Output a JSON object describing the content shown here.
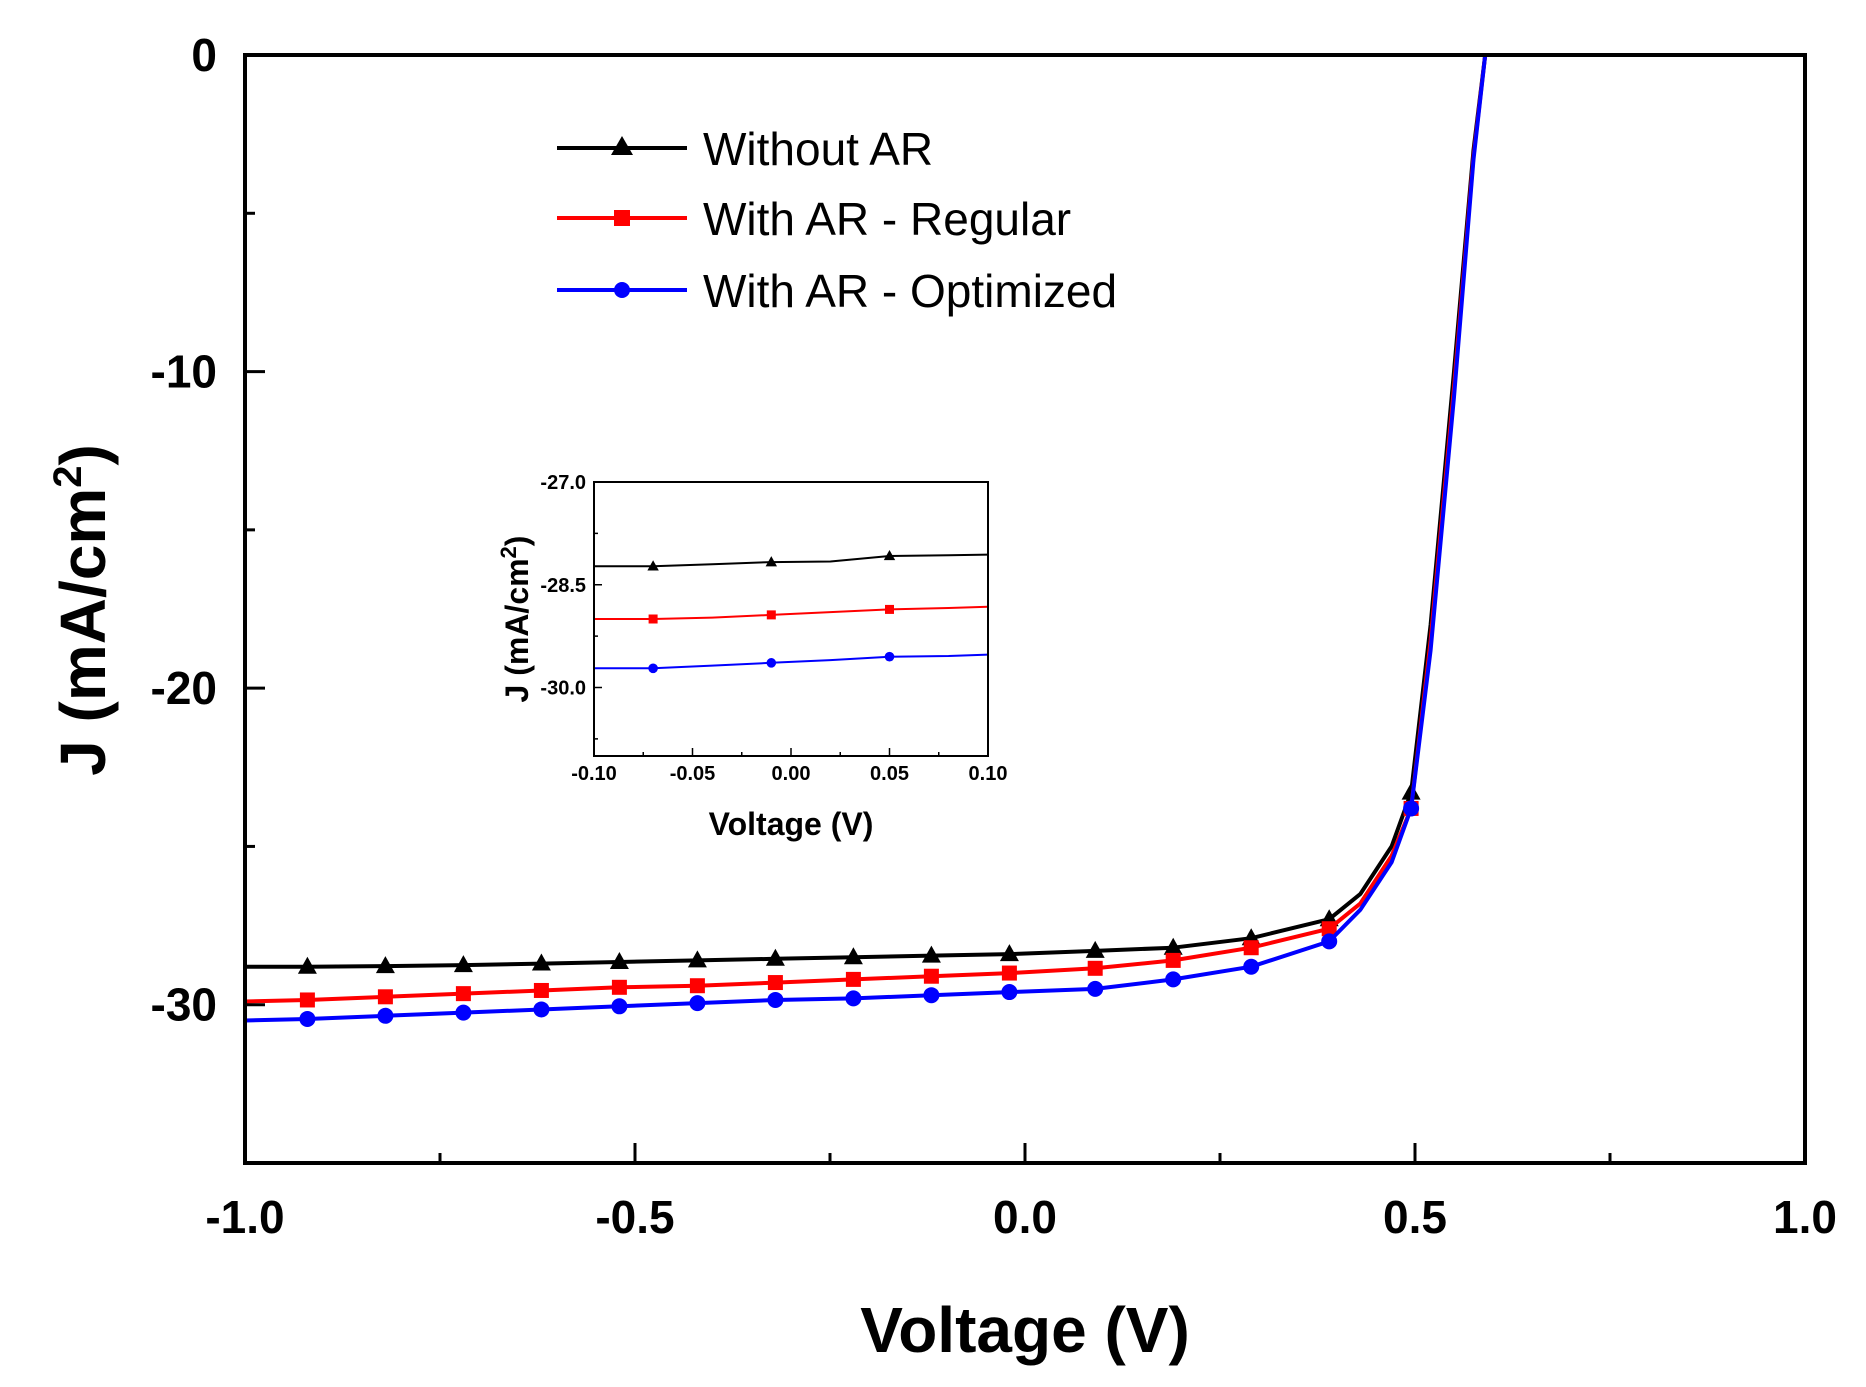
{
  "chart_data": [
    {
      "id": "main",
      "type": "line",
      "title": "",
      "xlabel": "Voltage (V)",
      "ylabel_prefix": "J (mA/cm",
      "ylabel_sup": "2",
      "ylabel_suffix": ")",
      "xlim": [
        -1.0,
        1.0
      ],
      "ylim": [
        -35,
        0
      ],
      "x_ticks": [
        -1.0,
        -0.5,
        0.0,
        0.5,
        1.0
      ],
      "x_tick_labels": [
        "-1.0",
        "-0.5",
        "0.0",
        "0.5",
        "1.0"
      ],
      "y_ticks": [
        0,
        -10,
        -20,
        -30
      ],
      "y_tick_labels": [
        "0",
        "-10",
        "-20",
        "-30"
      ],
      "grid": false,
      "legend_position": "top-left",
      "series": [
        {
          "name": "Without AR",
          "color": "#000000",
          "marker": "triangle",
          "x": [
            -1.0,
            -0.92,
            -0.82,
            -0.72,
            -0.62,
            -0.52,
            -0.42,
            -0.32,
            -0.22,
            -0.12,
            -0.02,
            0.09,
            0.19,
            0.29,
            0.39,
            0.43,
            0.47,
            0.495,
            0.52,
            0.55,
            0.575,
            0.59
          ],
          "y": [
            -28.8,
            -28.8,
            -28.78,
            -28.75,
            -28.7,
            -28.65,
            -28.6,
            -28.55,
            -28.5,
            -28.45,
            -28.4,
            -28.3,
            -28.2,
            -27.9,
            -27.3,
            -26.5,
            -25.0,
            -23.3,
            -18.0,
            -10.0,
            -3.0,
            0.0
          ]
        },
        {
          "name": "With AR - Regular",
          "color": "#ff0000",
          "marker": "square",
          "x": [
            -1.0,
            -0.92,
            -0.82,
            -0.72,
            -0.62,
            -0.52,
            -0.42,
            -0.32,
            -0.22,
            -0.12,
            -0.02,
            0.09,
            0.19,
            0.29,
            0.39,
            0.43,
            0.47,
            0.495,
            0.52,
            0.55,
            0.575,
            0.59
          ],
          "y": [
            -29.9,
            -29.85,
            -29.75,
            -29.65,
            -29.55,
            -29.45,
            -29.4,
            -29.3,
            -29.2,
            -29.1,
            -29.0,
            -28.85,
            -28.6,
            -28.2,
            -27.6,
            -26.8,
            -25.3,
            -23.8,
            -18.5,
            -10.5,
            -3.2,
            0.0
          ]
        },
        {
          "name": "With AR - Optimized",
          "color": "#0000ff",
          "marker": "circle",
          "x": [
            -1.0,
            -0.92,
            -0.82,
            -0.72,
            -0.62,
            -0.52,
            -0.42,
            -0.32,
            -0.22,
            -0.12,
            -0.02,
            0.09,
            0.19,
            0.29,
            0.39,
            0.43,
            0.47,
            0.495,
            0.52,
            0.55,
            0.575,
            0.59
          ],
          "y": [
            -30.5,
            -30.45,
            -30.35,
            -30.25,
            -30.15,
            -30.05,
            -29.95,
            -29.85,
            -29.8,
            -29.7,
            -29.6,
            -29.5,
            -29.2,
            -28.8,
            -28.0,
            -27.0,
            -25.5,
            -23.8,
            -18.8,
            -10.8,
            -3.3,
            0.0
          ]
        }
      ],
      "marker_x": [
        -0.92,
        -0.82,
        -0.72,
        -0.62,
        -0.52,
        -0.42,
        -0.32,
        -0.22,
        -0.12,
        -0.02,
        0.09,
        0.19,
        0.29,
        0.39,
        0.495
      ]
    },
    {
      "id": "inset",
      "type": "line",
      "title": "",
      "xlabel": "Voltage (V)",
      "ylabel_prefix": "J (mA/cm",
      "ylabel_sup": "2",
      "ylabel_suffix": ")",
      "xlim": [
        -0.1,
        0.1
      ],
      "ylim": [
        -31.0,
        -27.0
      ],
      "x_ticks": [
        -0.1,
        -0.05,
        0.0,
        0.05,
        0.1
      ],
      "x_tick_labels": [
        "-0.10",
        "-0.05",
        "0.00",
        "0.05",
        "0.10"
      ],
      "y_ticks": [
        -27.0,
        -28.5,
        -30.0
      ],
      "y_tick_labels": [
        "-27.0",
        "-28.5",
        "-30.0"
      ],
      "grid": false,
      "series": [
        {
          "name": "Without AR",
          "color": "#000000",
          "marker": "triangle",
          "x": [
            -0.1,
            -0.07,
            -0.04,
            -0.01,
            0.02,
            0.05,
            0.08,
            0.1
          ],
          "y": [
            -28.23,
            -28.23,
            -28.2,
            -28.17,
            -28.16,
            -28.08,
            -28.07,
            -28.06
          ]
        },
        {
          "name": "With AR - Regular",
          "color": "#ff0000",
          "marker": "square",
          "x": [
            -0.1,
            -0.07,
            -0.04,
            -0.01,
            0.02,
            0.05,
            0.08,
            0.1
          ],
          "y": [
            -29.0,
            -29.0,
            -28.98,
            -28.94,
            -28.9,
            -28.86,
            -28.84,
            -28.82
          ]
        },
        {
          "name": "With AR - Optimized",
          "color": "#0000ff",
          "marker": "circle",
          "x": [
            -0.1,
            -0.07,
            -0.04,
            -0.01,
            0.02,
            0.05,
            0.08,
            0.1
          ],
          "y": [
            -29.72,
            -29.72,
            -29.68,
            -29.64,
            -29.6,
            -29.55,
            -29.54,
            -29.52
          ]
        }
      ],
      "marker_x": [
        -0.07,
        -0.01,
        0.05
      ]
    }
  ]
}
